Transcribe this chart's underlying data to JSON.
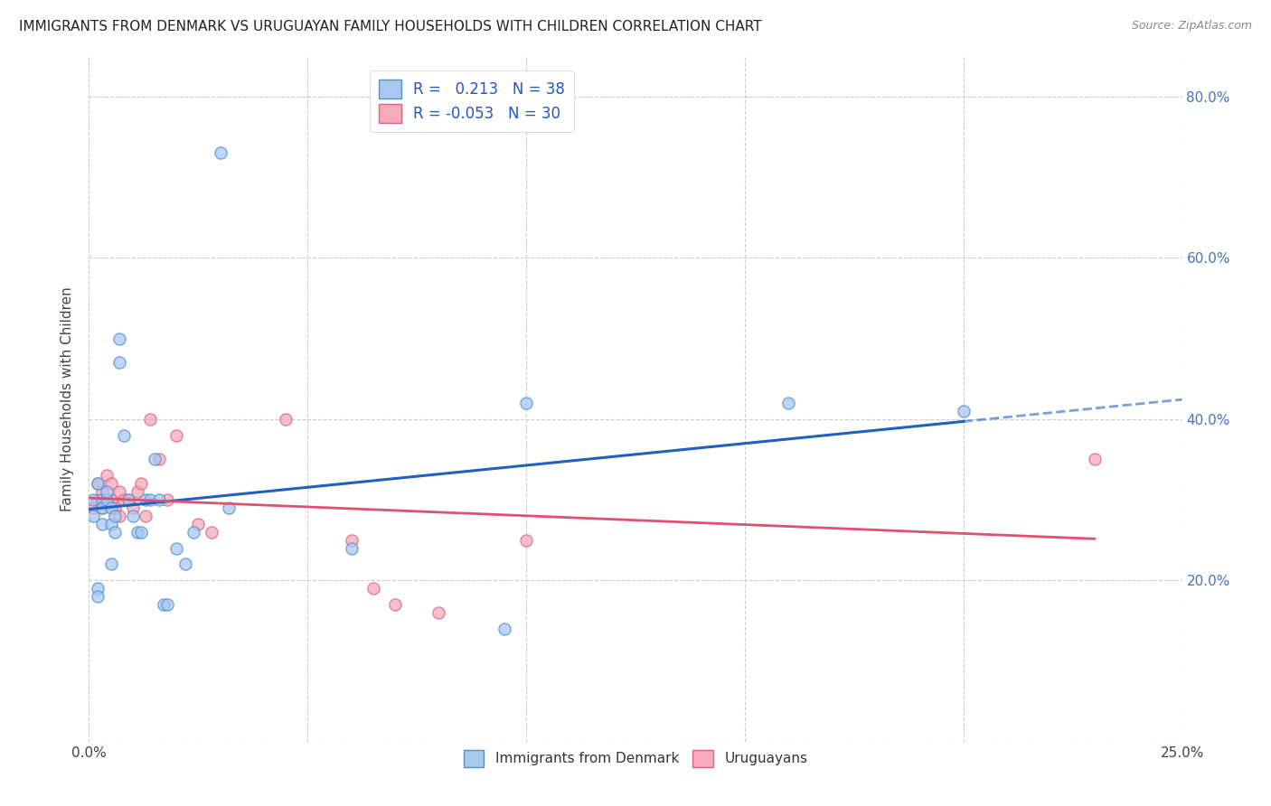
{
  "title": "IMMIGRANTS FROM DENMARK VS URUGUAYAN FAMILY HOUSEHOLDS WITH CHILDREN CORRELATION CHART",
  "source": "Source: ZipAtlas.com",
  "ylabel": "Family Households with Children",
  "xlim": [
    0.0,
    0.25
  ],
  "ylim": [
    0.0,
    0.85
  ],
  "xtick_positions": [
    0.0,
    0.05,
    0.1,
    0.15,
    0.2,
    0.25
  ],
  "xtick_labels": [
    "0.0%",
    "",
    "",
    "",
    "",
    "25.0%"
  ],
  "ytick_positions": [
    0.0,
    0.2,
    0.4,
    0.6,
    0.8
  ],
  "ytick_right_labels": [
    "",
    "20.0%",
    "40.0%",
    "60.0%",
    "80.0%"
  ],
  "legend_label1": "Immigrants from Denmark",
  "legend_label2": "Uruguayans",
  "blue_color": "#A8C8F0",
  "pink_color": "#F4AABB",
  "blue_edge_color": "#5090D0",
  "pink_edge_color": "#E06080",
  "blue_line_color": "#2060C0",
  "pink_line_color": "#E05070",
  "right_axis_color": "#4472C4",
  "background_color": "#FFFFFF",
  "grid_color": "#CCCCCC",
  "blue_x": [
    0.001,
    0.001,
    0.002,
    0.002,
    0.002,
    0.003,
    0.003,
    0.003,
    0.004,
    0.004,
    0.005,
    0.005,
    0.005,
    0.006,
    0.006,
    0.007,
    0.007,
    0.008,
    0.009,
    0.01,
    0.011,
    0.012,
    0.013,
    0.014,
    0.015,
    0.016,
    0.017,
    0.018,
    0.02,
    0.022,
    0.024,
    0.03,
    0.032,
    0.06,
    0.095,
    0.1,
    0.16,
    0.2
  ],
  "blue_y": [
    0.3,
    0.28,
    0.32,
    0.19,
    0.18,
    0.3,
    0.29,
    0.27,
    0.3,
    0.31,
    0.29,
    0.27,
    0.22,
    0.28,
    0.26,
    0.47,
    0.5,
    0.38,
    0.3,
    0.28,
    0.26,
    0.26,
    0.3,
    0.3,
    0.35,
    0.3,
    0.17,
    0.17,
    0.24,
    0.22,
    0.26,
    0.73,
    0.29,
    0.24,
    0.14,
    0.42,
    0.42,
    0.41
  ],
  "pink_x": [
    0.001,
    0.002,
    0.002,
    0.003,
    0.003,
    0.004,
    0.005,
    0.005,
    0.006,
    0.007,
    0.007,
    0.008,
    0.009,
    0.01,
    0.011,
    0.012,
    0.013,
    0.014,
    0.016,
    0.018,
    0.02,
    0.025,
    0.028,
    0.045,
    0.06,
    0.065,
    0.07,
    0.08,
    0.1,
    0.23
  ],
  "pink_y": [
    0.29,
    0.32,
    0.3,
    0.31,
    0.29,
    0.33,
    0.32,
    0.3,
    0.29,
    0.31,
    0.28,
    0.3,
    0.3,
    0.29,
    0.31,
    0.32,
    0.28,
    0.4,
    0.35,
    0.3,
    0.38,
    0.27,
    0.26,
    0.4,
    0.25,
    0.19,
    0.17,
    0.16,
    0.25,
    0.35
  ],
  "blue_r": 0.213,
  "blue_n": 38,
  "pink_r": -0.053,
  "pink_n": 30,
  "marker_size": 90,
  "marker_alpha": 0.75
}
